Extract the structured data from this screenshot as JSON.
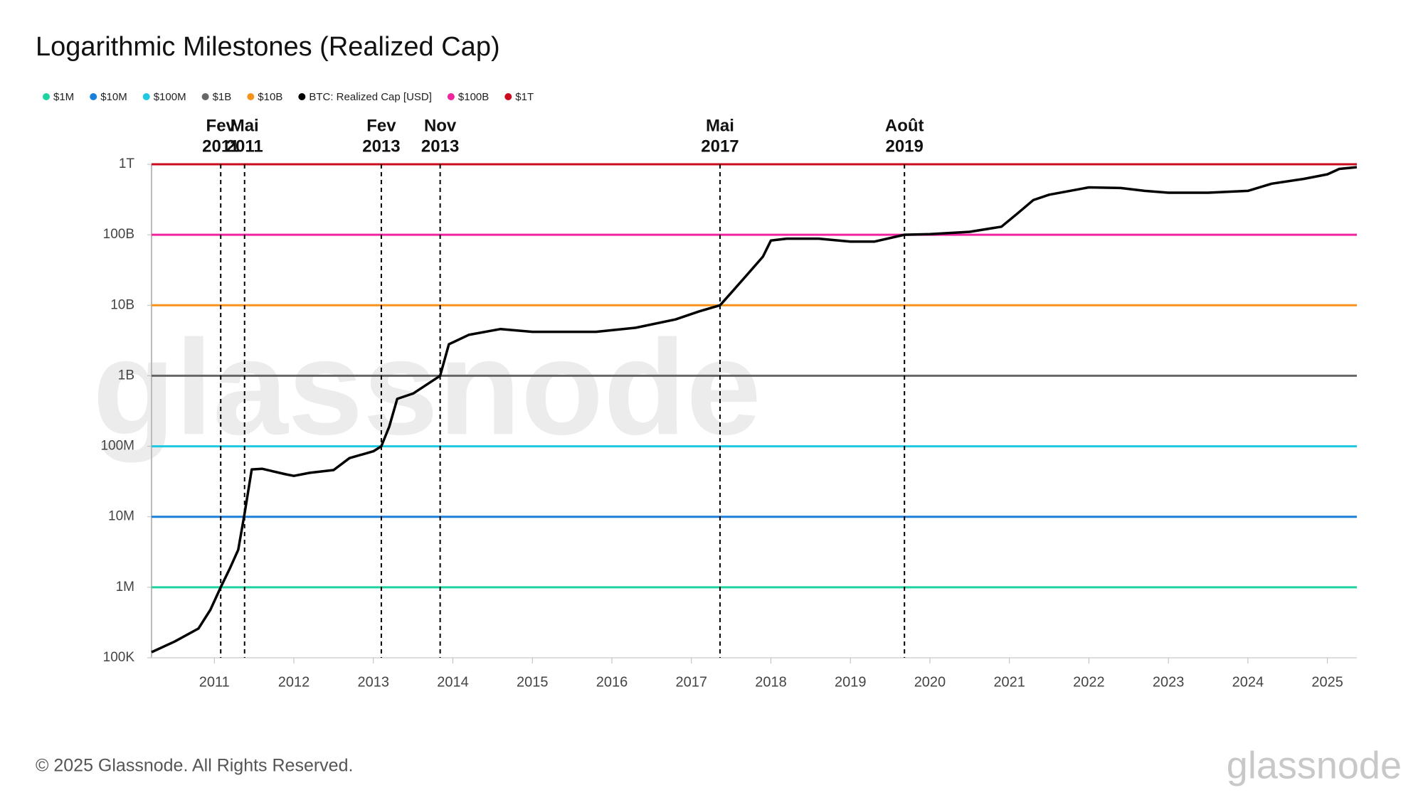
{
  "chart_data": {
    "type": "line",
    "title": "Logarithmic Milestones (Realized Cap)",
    "footer": "© 2025 Glassnode. All Rights Reserved.",
    "logo": "glassnode",
    "watermark": "glassnode",
    "log_scale": true,
    "grid": false,
    "legend": "top-left",
    "xlim": [
      2010.21,
      2025.37
    ],
    "xticks": [
      2011,
      2012,
      2013,
      2014,
      2015,
      2016,
      2017,
      2018,
      2019,
      2020,
      2021,
      2022,
      2023,
      2024,
      2025
    ],
    "ylim": [
      100000,
      1000000000000
    ],
    "yticks": [
      {
        "value": 100000,
        "label": "100K"
      },
      {
        "value": 1000000,
        "label": "1M"
      },
      {
        "value": 10000000,
        "label": "10M"
      },
      {
        "value": 100000000,
        "label": "100M"
      },
      {
        "value": 1000000000,
        "label": "1B"
      },
      {
        "value": 10000000000,
        "label": "10B"
      },
      {
        "value": 100000000000,
        "label": "100B"
      },
      {
        "value": 1000000000000,
        "label": "1T"
      }
    ],
    "x": [
      2010.21,
      2010.5,
      2010.8,
      2010.95,
      2011.08,
      2011.2,
      2011.3,
      2011.38,
      2011.47,
      2011.6,
      2011.9,
      2012.0,
      2012.2,
      2012.5,
      2012.7,
      2013.0,
      2013.1,
      2013.2,
      2013.3,
      2013.5,
      2013.84,
      2013.95,
      2014.2,
      2014.6,
      2015.0,
      2015.8,
      2016.3,
      2016.8,
      2017.1,
      2017.36,
      2017.5,
      2017.7,
      2017.9,
      2018.0,
      2018.2,
      2018.6,
      2019.0,
      2019.3,
      2019.68,
      2020.0,
      2020.5,
      2020.9,
      2021.1,
      2021.3,
      2021.5,
      2022.0,
      2022.4,
      2022.7,
      2023.0,
      2023.5,
      2024.0,
      2024.3,
      2024.7,
      2025.0,
      2025.15,
      2025.37
    ],
    "series": [
      {
        "name": "$1M",
        "color": "#1fd3a0",
        "value": 1000000
      },
      {
        "name": "$10M",
        "color": "#1a7fd8",
        "value": 10000000
      },
      {
        "name": "$100M",
        "color": "#1ec8e0",
        "value": 100000000
      },
      {
        "name": "$1B",
        "color": "#666666",
        "value": 1000000000
      },
      {
        "name": "$10B",
        "color": "#f7931a",
        "value": 10000000000
      },
      {
        "name": "BTC: Realized Cap [USD]",
        "color": "#000000",
        "values": [
          120000,
          170000,
          260000,
          480000,
          1000000,
          1900000,
          3400000,
          11000000,
          47000000,
          48000000,
          40000000,
          38000000,
          42000000,
          46000000,
          68000000,
          85000000,
          100000000,
          190000000,
          470000000,
          560000000,
          1000000000,
          2800000000,
          3800000000,
          4600000000,
          4200000000,
          4200000000,
          4800000000,
          6300000000,
          8200000000,
          10000000000,
          15000000000,
          27000000000,
          49000000000,
          83000000000,
          88000000000,
          88000000000,
          80000000000,
          80000000000,
          100000000000,
          102000000000,
          110000000000,
          130000000000,
          200000000000,
          310000000000,
          370000000000,
          470000000000,
          460000000000,
          420000000000,
          395000000000,
          395000000000,
          420000000000,
          530000000000,
          620000000000,
          720000000000,
          860000000000,
          910000000000
        ]
      },
      {
        "name": "$100B",
        "color": "#f0249e",
        "value": 100000000000
      },
      {
        "name": "$1T",
        "color": "#cc0a1e",
        "value": 1000000000000
      }
    ],
    "annotations": [
      {
        "x": 2011.08,
        "label": [
          "Fev",
          "2011"
        ]
      },
      {
        "x": 2011.38,
        "label": [
          "Mai",
          "2011"
        ]
      },
      {
        "x": 2013.1,
        "label": [
          "Fev",
          "2013"
        ]
      },
      {
        "x": 2013.84,
        "label": [
          "Nov",
          "2013"
        ]
      },
      {
        "x": 2017.36,
        "label": [
          "Mai",
          "2017"
        ]
      },
      {
        "x": 2019.68,
        "label": [
          "Août",
          "2019"
        ]
      }
    ]
  }
}
